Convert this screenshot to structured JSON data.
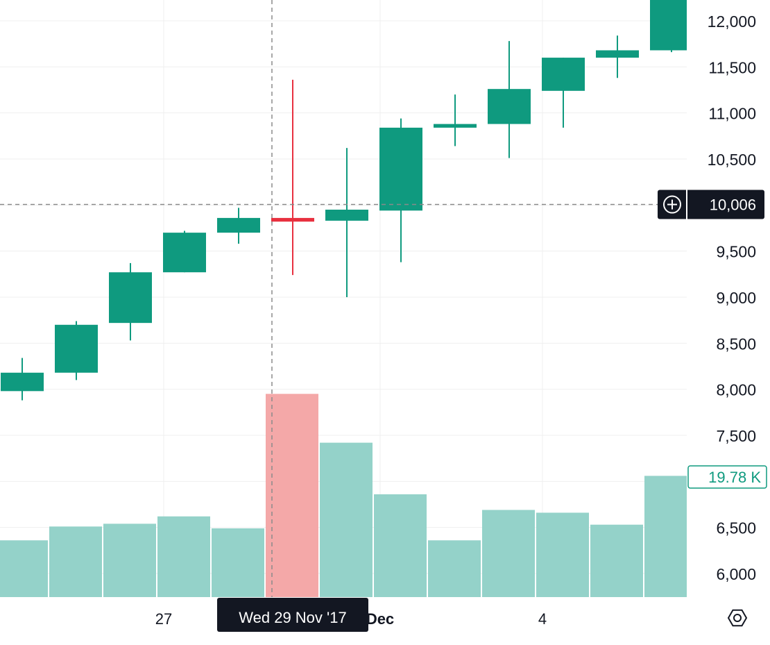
{
  "chart_data": {
    "type": "candlestick",
    "y_axis": {
      "ticks": [
        6000,
        6500,
        7000,
        7500,
        8000,
        8500,
        9000,
        9500,
        10000,
        10500,
        11000,
        11500,
        12000
      ],
      "tick_labels": [
        "6,000",
        "6,500",
        "",
        "7,500",
        "8,000",
        "8,500",
        "9,000",
        "9,500",
        "",
        "10,500",
        "11,000",
        "11,500",
        "12,000"
      ],
      "range": [
        5750,
        12250
      ]
    },
    "x_axis": {
      "labels": [
        {
          "text": "27",
          "bold": false,
          "index": 3
        },
        {
          "text": "Dec",
          "bold": true,
          "index": 7
        },
        {
          "text": "4",
          "bold": false,
          "index": 10
        }
      ]
    },
    "crosshair": {
      "index": 5,
      "price": 10006,
      "price_label": "10,006",
      "date_label": "Wed 29 Nov '17"
    },
    "volume_label": "19.78 K",
    "colors": {
      "up": "#0f9a7f",
      "down": "#e8303f",
      "volume_up": "#94d2c9",
      "volume_down": "#f4a8a8",
      "grid": "#efefef",
      "label_bg": "#131722"
    },
    "candles": [
      {
        "open": 7980,
        "high": 8340,
        "low": 7880,
        "close": 8180
      },
      {
        "open": 8180,
        "high": 8740,
        "low": 8100,
        "close": 8700
      },
      {
        "open": 8720,
        "high": 9370,
        "low": 8530,
        "close": 9270
      },
      {
        "open": 9270,
        "high": 9720,
        "low": 9270,
        "close": 9700
      },
      {
        "open": 9700,
        "high": 9970,
        "low": 9580,
        "close": 9860
      },
      {
        "open": 9860,
        "high": 11360,
        "low": 9240,
        "close": 9820
      },
      {
        "open": 9830,
        "high": 10620,
        "low": 9000,
        "close": 9950
      },
      {
        "open": 9940,
        "high": 10940,
        "low": 9380,
        "close": 10840
      },
      {
        "open": 10840,
        "high": 11200,
        "low": 10640,
        "close": 10880
      },
      {
        "open": 10880,
        "high": 11780,
        "low": 10510,
        "close": 11260
      },
      {
        "open": 11240,
        "high": 11600,
        "low": 10840,
        "close": 11600
      },
      {
        "open": 11600,
        "high": 11840,
        "low": 11380,
        "close": 11680
      },
      {
        "open": 11680,
        "high": 12250,
        "low": 11660,
        "close": 12250
      }
    ],
    "volumes": [
      {
        "value": 6360,
        "up": true
      },
      {
        "value": 6510,
        "up": true
      },
      {
        "value": 6540,
        "up": true
      },
      {
        "value": 6620,
        "up": true
      },
      {
        "value": 6490,
        "up": true
      },
      {
        "value": 7950,
        "up": false
      },
      {
        "value": 7420,
        "up": true
      },
      {
        "value": 6860,
        "up": true
      },
      {
        "value": 6360,
        "up": true
      },
      {
        "value": 6690,
        "up": true
      },
      {
        "value": 6660,
        "up": true
      },
      {
        "value": 6530,
        "up": true
      },
      {
        "value": 7060,
        "up": true
      }
    ]
  },
  "icons": {
    "add_alert": "plus-circle-icon",
    "settings": "gear-icon"
  }
}
